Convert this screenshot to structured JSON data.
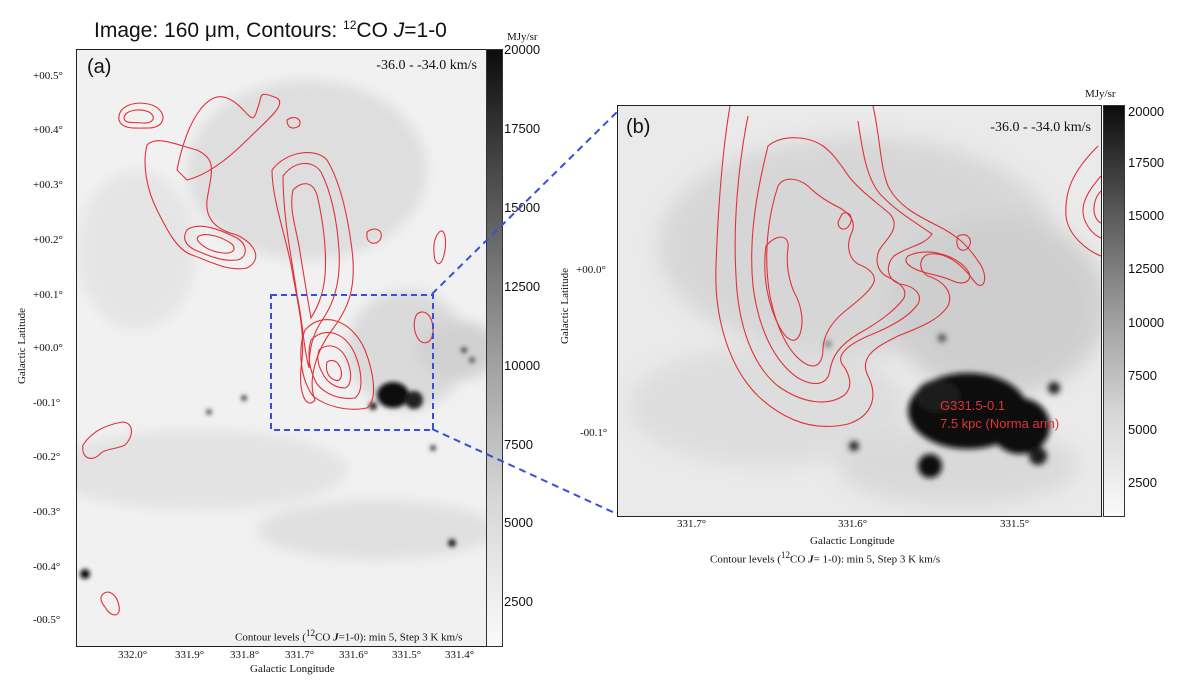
{
  "title": {
    "prefix": "Image: 160 μm, Contours: ",
    "iso_mass": "12",
    "species": "CO ",
    "transition_J": "J",
    "transition_rest": "=1-0"
  },
  "panel_a": {
    "label": "(a)",
    "velocity": "-36.0 - -34.0 km/s",
    "y_ticks": [
      "+00.5°",
      "+00.4°",
      "+00.3°",
      "+00.2°",
      "+00.1°",
      "+00.0°",
      "-00.1°",
      "-00.2°",
      "-00.3°",
      "-00.4°",
      "-00.5°"
    ],
    "x_ticks": [
      "332.0°",
      "331.9°",
      "331.8°",
      "331.7°",
      "331.6°",
      "331.5°",
      "331.4°"
    ],
    "xlabel": "Galactic Longitude",
    "ylabel": "Galactic Latitude",
    "contour_note_prefix": "Contour levels (",
    "contour_note_iso": "12",
    "contour_note_mid": "CO ",
    "contour_note_J": "J",
    "contour_note_rest": "=1-0): min 5, Step 3 K km/s",
    "colorbar": {
      "unit": "MJy/sr",
      "ticks": [
        "20000",
        "17500",
        "15000",
        "12500",
        "10000",
        "7500",
        "5000",
        "2500"
      ]
    }
  },
  "panel_b": {
    "label": "(b)",
    "velocity": "-36.0 - -34.0 km/s",
    "y_ticks": [
      "+00.0°",
      "-00.1°"
    ],
    "x_ticks": [
      "331.7°",
      "331.6°",
      "331.5°"
    ],
    "xlabel": "Galactic Longitude",
    "ylabel": "Galactic Latitude",
    "contour_note_prefix": "Contour levels (",
    "contour_note_iso": "12",
    "contour_note_mid": "CO ",
    "contour_note_J": "J",
    "contour_note_rest": "= 1-0): min 5, Step 3 K km/s",
    "source_name": "G331.5-0.1",
    "source_distance": "7.5 kpc (Norma arm)",
    "colorbar": {
      "unit": "MJy/sr",
      "ticks": [
        "20000",
        "17500",
        "15000",
        "12500",
        "10000",
        "7500",
        "5000",
        "2500"
      ]
    }
  },
  "colors": {
    "contour": "#e0323a",
    "zoom_box": "#3a4fd9",
    "background": "#ffffff"
  }
}
